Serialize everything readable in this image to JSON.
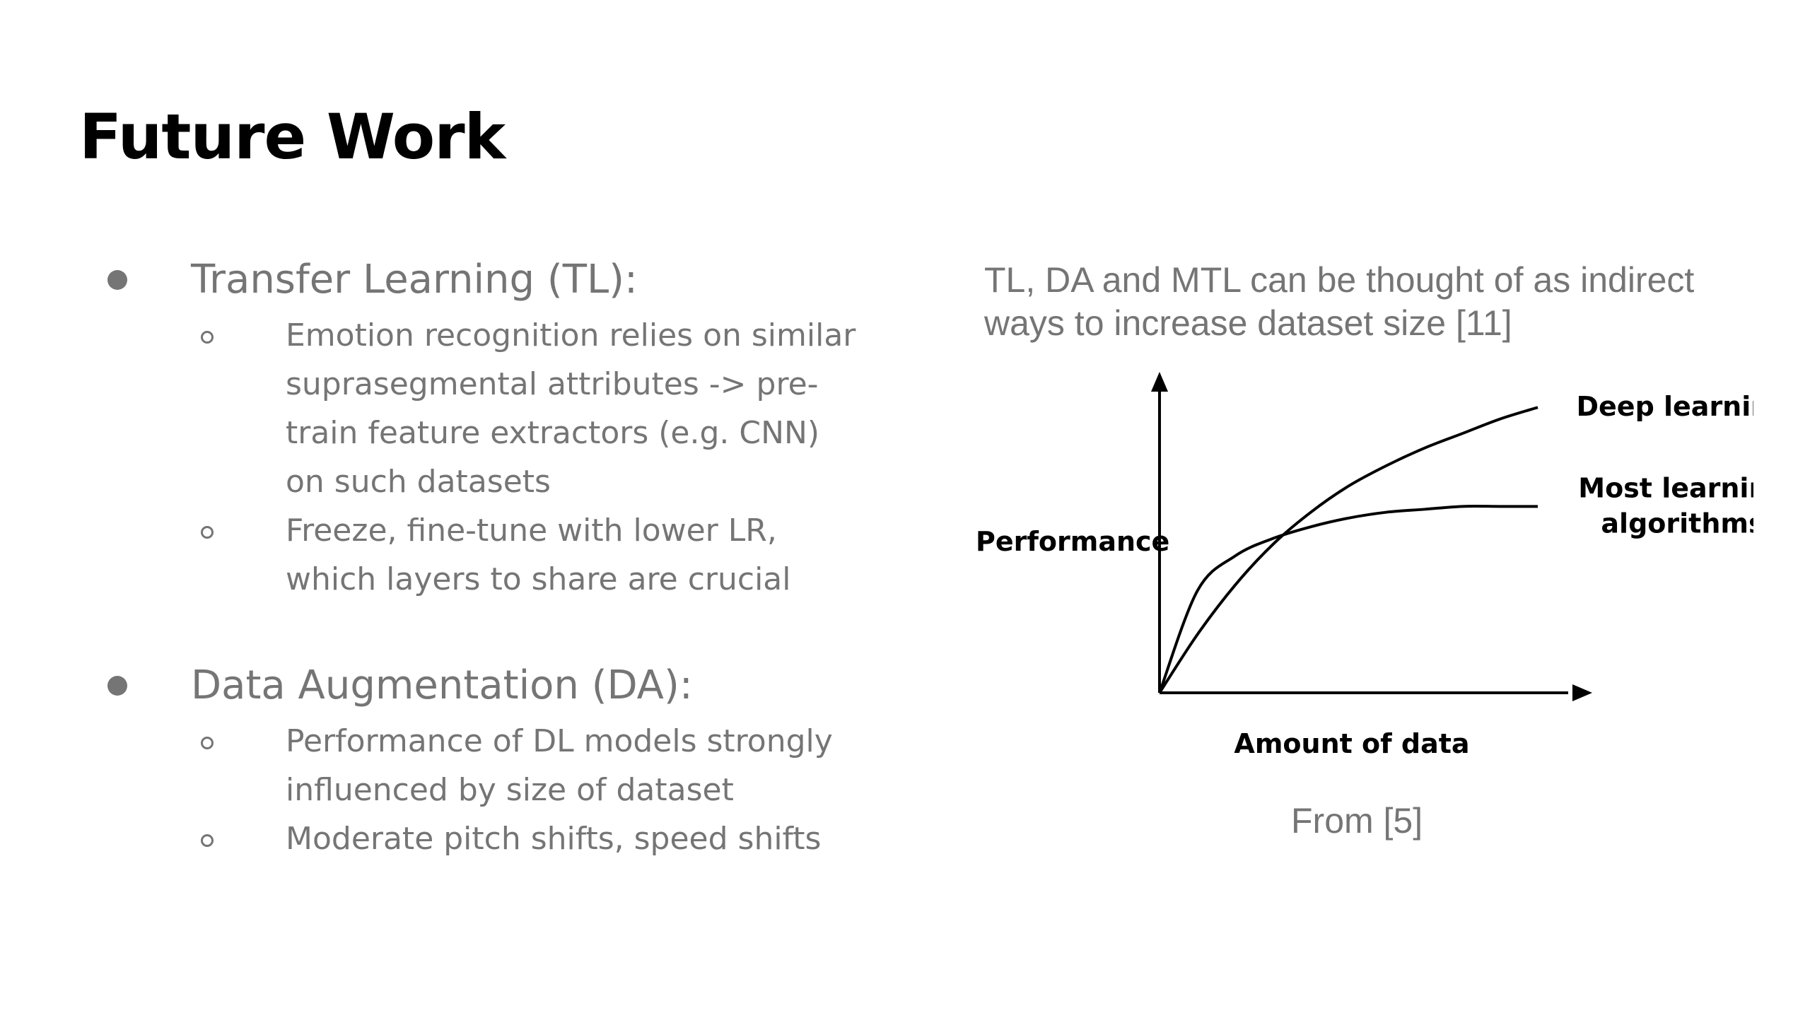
{
  "slide": {
    "title": "Future Work"
  },
  "sections": [
    {
      "heading": "Transfer Learning (TL):",
      "items": [
        "Emotion recognition relies on similar suprasegmental attributes -> pre-train feature extractors (e.g. CNN) on such datasets",
        "Freeze, fine-tune with lower LR, which layers to share are crucial"
      ]
    },
    {
      "heading": "Data Augmentation (DA):",
      "items": [
        "Performance of DL models strongly influenced by size of dataset",
        "Moderate pitch shifts, speed shifts"
      ]
    }
  ],
  "figure": {
    "caption": "TL, DA and MTL can be thought of as indirect ways to increase dataset size [11]",
    "source": "From [5]"
  },
  "chart_data": {
    "type": "line",
    "title": "",
    "xlabel": "Amount of data",
    "ylabel": "Performance",
    "axis_ticks": "none",
    "grid": false,
    "legend": "inline labels at line ends (right)",
    "series": [
      {
        "name": "Deep learning",
        "label_lines": [
          "Deep learning"
        ],
        "description": "rises steadily, nearly linear, keeps increasing",
        "x": [
          0,
          0.1,
          0.2,
          0.3,
          0.4,
          0.5,
          0.6,
          0.7,
          0.8,
          0.9,
          1.0
        ],
        "y": [
          0,
          0.2,
          0.37,
          0.51,
          0.62,
          0.71,
          0.78,
          0.84,
          0.89,
          0.94,
          0.98
        ]
      },
      {
        "name": "Most learning algorithms",
        "label_lines": [
          "Most learning",
          "algorithms"
        ],
        "description": "rises quickly then plateaus",
        "x": [
          0,
          0.1,
          0.2,
          0.3,
          0.4,
          0.5,
          0.6,
          0.7,
          0.8,
          0.9,
          1.0
        ],
        "y": [
          0,
          0.35,
          0.47,
          0.53,
          0.57,
          0.6,
          0.62,
          0.63,
          0.64,
          0.64,
          0.64
        ]
      }
    ]
  }
}
